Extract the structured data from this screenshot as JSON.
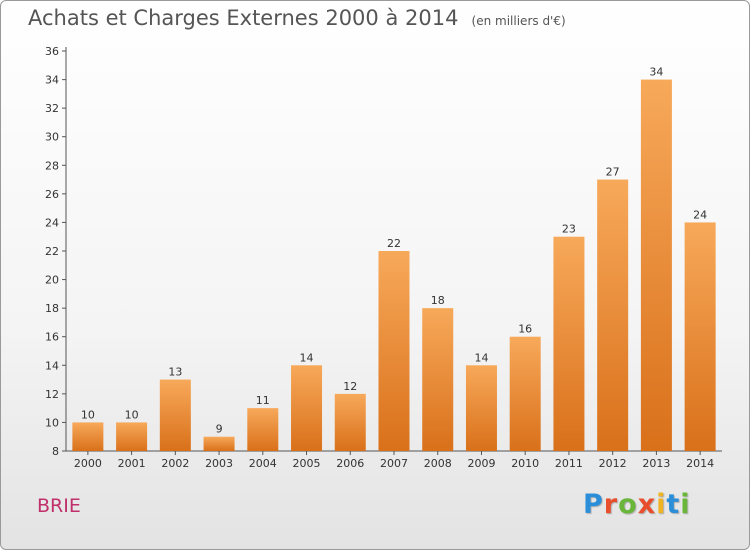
{
  "header": {
    "title": "Achats et Charges Externes 2000 à 2014",
    "subtitle": "(en milliers d'€)"
  },
  "footer": {
    "place": "BRIE",
    "logo": "Proxiti"
  },
  "colors": {
    "bar_light": "#f7a95a",
    "bar_dark": "#d9701a",
    "axis": "#555555",
    "text": "#333333",
    "place": "#c0306a",
    "logo_letters": [
      "#2a8fd8",
      "#e84e2c",
      "#6ab63a",
      "#e84e2c",
      "#f0b323",
      "#2a8fd8",
      "#6ab63a"
    ]
  },
  "chart_data": {
    "type": "bar",
    "title": "Achats et Charges Externes 2000 à 2014",
    "subtitle": "(en milliers d'€)",
    "xlabel": "",
    "ylabel": "",
    "categories": [
      "2000",
      "2001",
      "2002",
      "2003",
      "2004",
      "2005",
      "2006",
      "2007",
      "2008",
      "2009",
      "2010",
      "2011",
      "2012",
      "2013",
      "2014"
    ],
    "values": [
      10,
      10,
      13,
      9,
      11,
      14,
      12,
      22,
      18,
      14,
      16,
      23,
      27,
      34,
      24
    ],
    "ylim": [
      8,
      36
    ],
    "yticks": [
      8,
      10,
      12,
      14,
      16,
      18,
      20,
      22,
      24,
      26,
      28,
      30,
      32,
      34,
      36
    ],
    "data_labels": true,
    "grid": false
  }
}
